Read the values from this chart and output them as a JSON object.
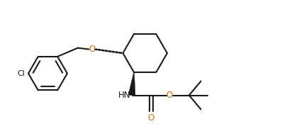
{
  "bg_color": "#ffffff",
  "line_color": "#1a1a1a",
  "bond_lw": 1.5,
  "label_color_o": "#c87000",
  "label_color_cl": "#1a1a1a",
  "label_color_nh": "#1a1a1a",
  "figsize": [
    3.98,
    1.92
  ],
  "dpi": 100,
  "xlim": [
    0.0,
    10.0
  ],
  "ylim": [
    0.5,
    5.5
  ]
}
